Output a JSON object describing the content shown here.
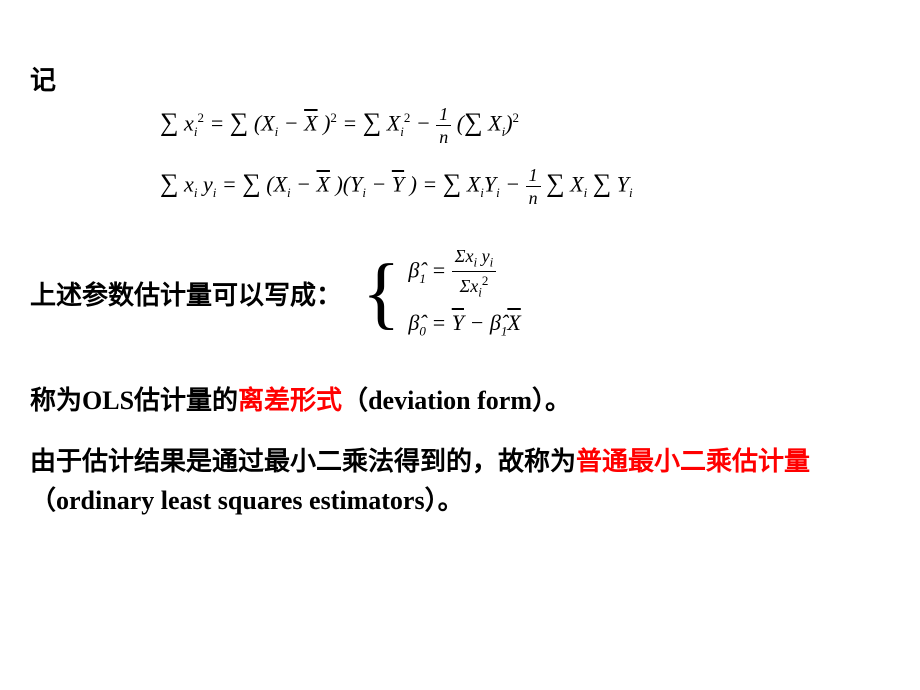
{
  "label_ji": "记",
  "eq1": {
    "lhs": "∑ x",
    "lhs_sub": "i",
    "lhs_sup": "2",
    "eq": " = ",
    "r1": "∑ (X",
    "r1_sub": "i",
    "r1_b": " − X̄ )",
    "r1_sup": "2",
    "r2": " = ∑ X",
    "r2_sub": "i",
    "r2_sup": "2",
    "minus": " − ",
    "frac_num": "1",
    "frac_den": "n",
    "r3": "(∑ X",
    "r3_sub": "i",
    "r3_end": ")",
    "r3_sup": "2"
  },
  "eq2": {
    "lhs": "∑ x",
    "lhs_sub1": "i",
    "lhs_y": " y",
    "lhs_sub2": "i",
    "eq": " = ",
    "r1": "∑ (X",
    "r1_sub": "i",
    "r1_b": " − X̄ )(Y",
    "r1_sub2": "i",
    "r1_c": " − Ȳ )",
    "r2": " = ∑ X",
    "r2_sub1": "i",
    "r2_y": "Y",
    "r2_sub2": "i",
    "minus": " − ",
    "frac_num": "1",
    "frac_den": "n",
    "r3": " ∑ X",
    "r3_sub": "i",
    "r3_b": " ∑ Y",
    "r3_sub2": "i"
  },
  "param_label": "上述参数估计量可以写成：",
  "beta1": {
    "lhs": "β̂",
    "lhs_sub": "1",
    "eq": " = ",
    "num": "Σx",
    "num_sub1": "i",
    "num_y": " y",
    "num_sub2": "i",
    "den": "Σx",
    "den_sub": "i",
    "den_sup": "2"
  },
  "beta0": {
    "lhs": "β̂",
    "lhs_sub": "0",
    "eq": " = Ȳ − β̂",
    "b1_sub": "1",
    "xbar": "X̄"
  },
  "para1": {
    "t1": "称为OLS估计量的",
    "red1": "离差形式",
    "t2": "（",
    "en1": "deviation form",
    "t3": "）。"
  },
  "para2": {
    "t1": "由于估计结果是通过最小二乘法得到的，故称为",
    "red1": "普通最小二乘估计量",
    "t2": "（",
    "en1": "ordinary least squares estimators",
    "t3": "）。"
  },
  "colors": {
    "text": "#000000",
    "highlight": "#ff0000",
    "background": "#ffffff"
  },
  "fonts": {
    "chinese_size": 26,
    "math_size": 22,
    "sub_size": 13
  }
}
